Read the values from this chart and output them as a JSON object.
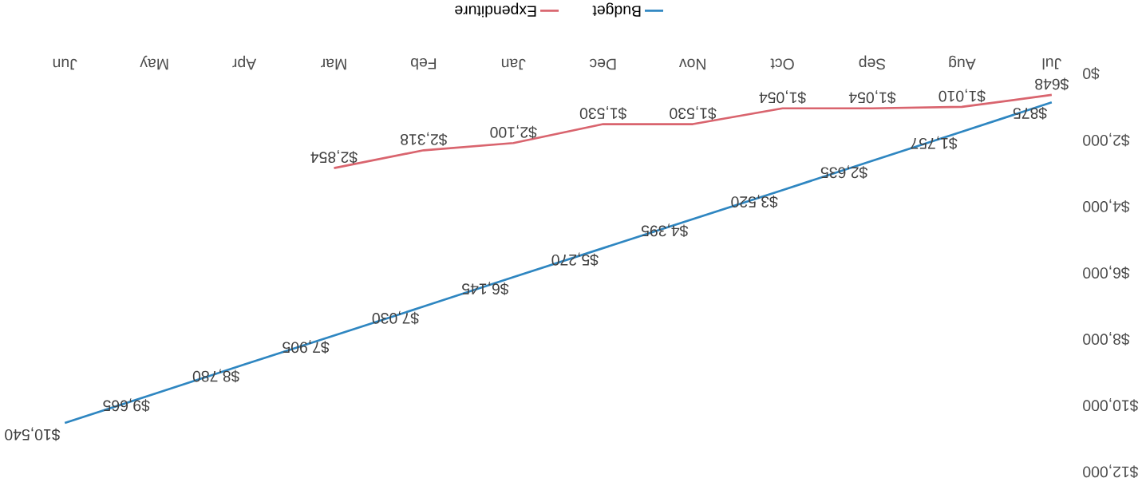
{
  "chart_data": {
    "type": "line",
    "categories": [
      "Jun",
      "May",
      "Apr",
      "Mar",
      "Feb",
      "Jan",
      "Dec",
      "Nov",
      "Oct",
      "Sep",
      "Aug",
      "Jul"
    ],
    "series": [
      {
        "name": "Budget",
        "color": "#2e86c1",
        "values": [
          10540,
          9665,
          8780,
          7905,
          7030,
          6145,
          5270,
          4395,
          3520,
          2635,
          1757,
          875
        ],
        "value_labels": [
          "$10,540",
          "$9,665",
          "$8,780",
          "$7,905",
          "$7,030",
          "$6,145",
          "$5,270",
          "$4,395",
          "$3,520",
          "$2,635",
          "$1,757",
          "$875"
        ]
      },
      {
        "name": "Expenditure",
        "color": "#d9646e",
        "values": [
          null,
          null,
          null,
          2854,
          2318,
          2100,
          1530,
          1530,
          1054,
          1054,
          1010,
          648
        ],
        "value_labels": [
          null,
          null,
          null,
          "$2,854",
          "$2,318",
          "$2,100",
          "$1,530",
          "$1,530",
          "$1,054",
          "$1,054",
          "$1,010",
          "$648"
        ]
      }
    ],
    "ylim": [
      12000,
      0
    ],
    "yticks": [
      {
        "value": 0,
        "label": "$0"
      },
      {
        "value": 2000,
        "label": "$2,000"
      },
      {
        "value": 4000,
        "label": "$4,000"
      },
      {
        "value": 6000,
        "label": "$6,000"
      },
      {
        "value": 8000,
        "label": "$8,000"
      },
      {
        "value": 10000,
        "label": "$10,000"
      },
      {
        "value": 12000,
        "label": "$12,000"
      }
    ],
    "legend": "top",
    "marker": "none",
    "line_style": "solid"
  }
}
